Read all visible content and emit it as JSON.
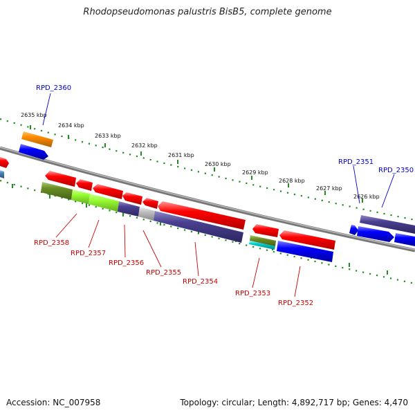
{
  "title": "Rhodopseudomonas palustris BisB5, complete genome",
  "footer": {
    "accession": "Accession: NC_007958",
    "summary": "Topology: circular; Length: 4,892,717 bp; Genes: 4,470"
  },
  "scale_ticks": [
    "2635 kbp",
    "2634 kbp",
    "2633 kbp",
    "2632 kbp",
    "2631 kbp",
    "2630 kbp",
    "2629 kbp",
    "2628 kbp",
    "2627 kbp",
    "2626 kbp"
  ],
  "gene_labels": {
    "top": [
      "RPD_2360",
      "RPD_2351",
      "RPD_2350"
    ],
    "bottom": [
      "RPD_2358",
      "RPD_2357",
      "RPD_2356",
      "RPD_2355",
      "RPD_2354",
      "RPD_2353",
      "RPD_2352"
    ]
  },
  "colors": {
    "top_label": "#0000cc",
    "bottom_label": "#cc0000",
    "red_gene": "#ff0000",
    "blue_gene": "#0000ff",
    "navy_gene": "#4a4090",
    "orange_gene": "#ff8c00",
    "olive_gene": "#6b8e23",
    "lime_gene": "#99ff33",
    "teal_gene": "#00cccc",
    "gray_gene": "#c0c0c0",
    "backbone": "#888888",
    "scale": "#228b22"
  }
}
